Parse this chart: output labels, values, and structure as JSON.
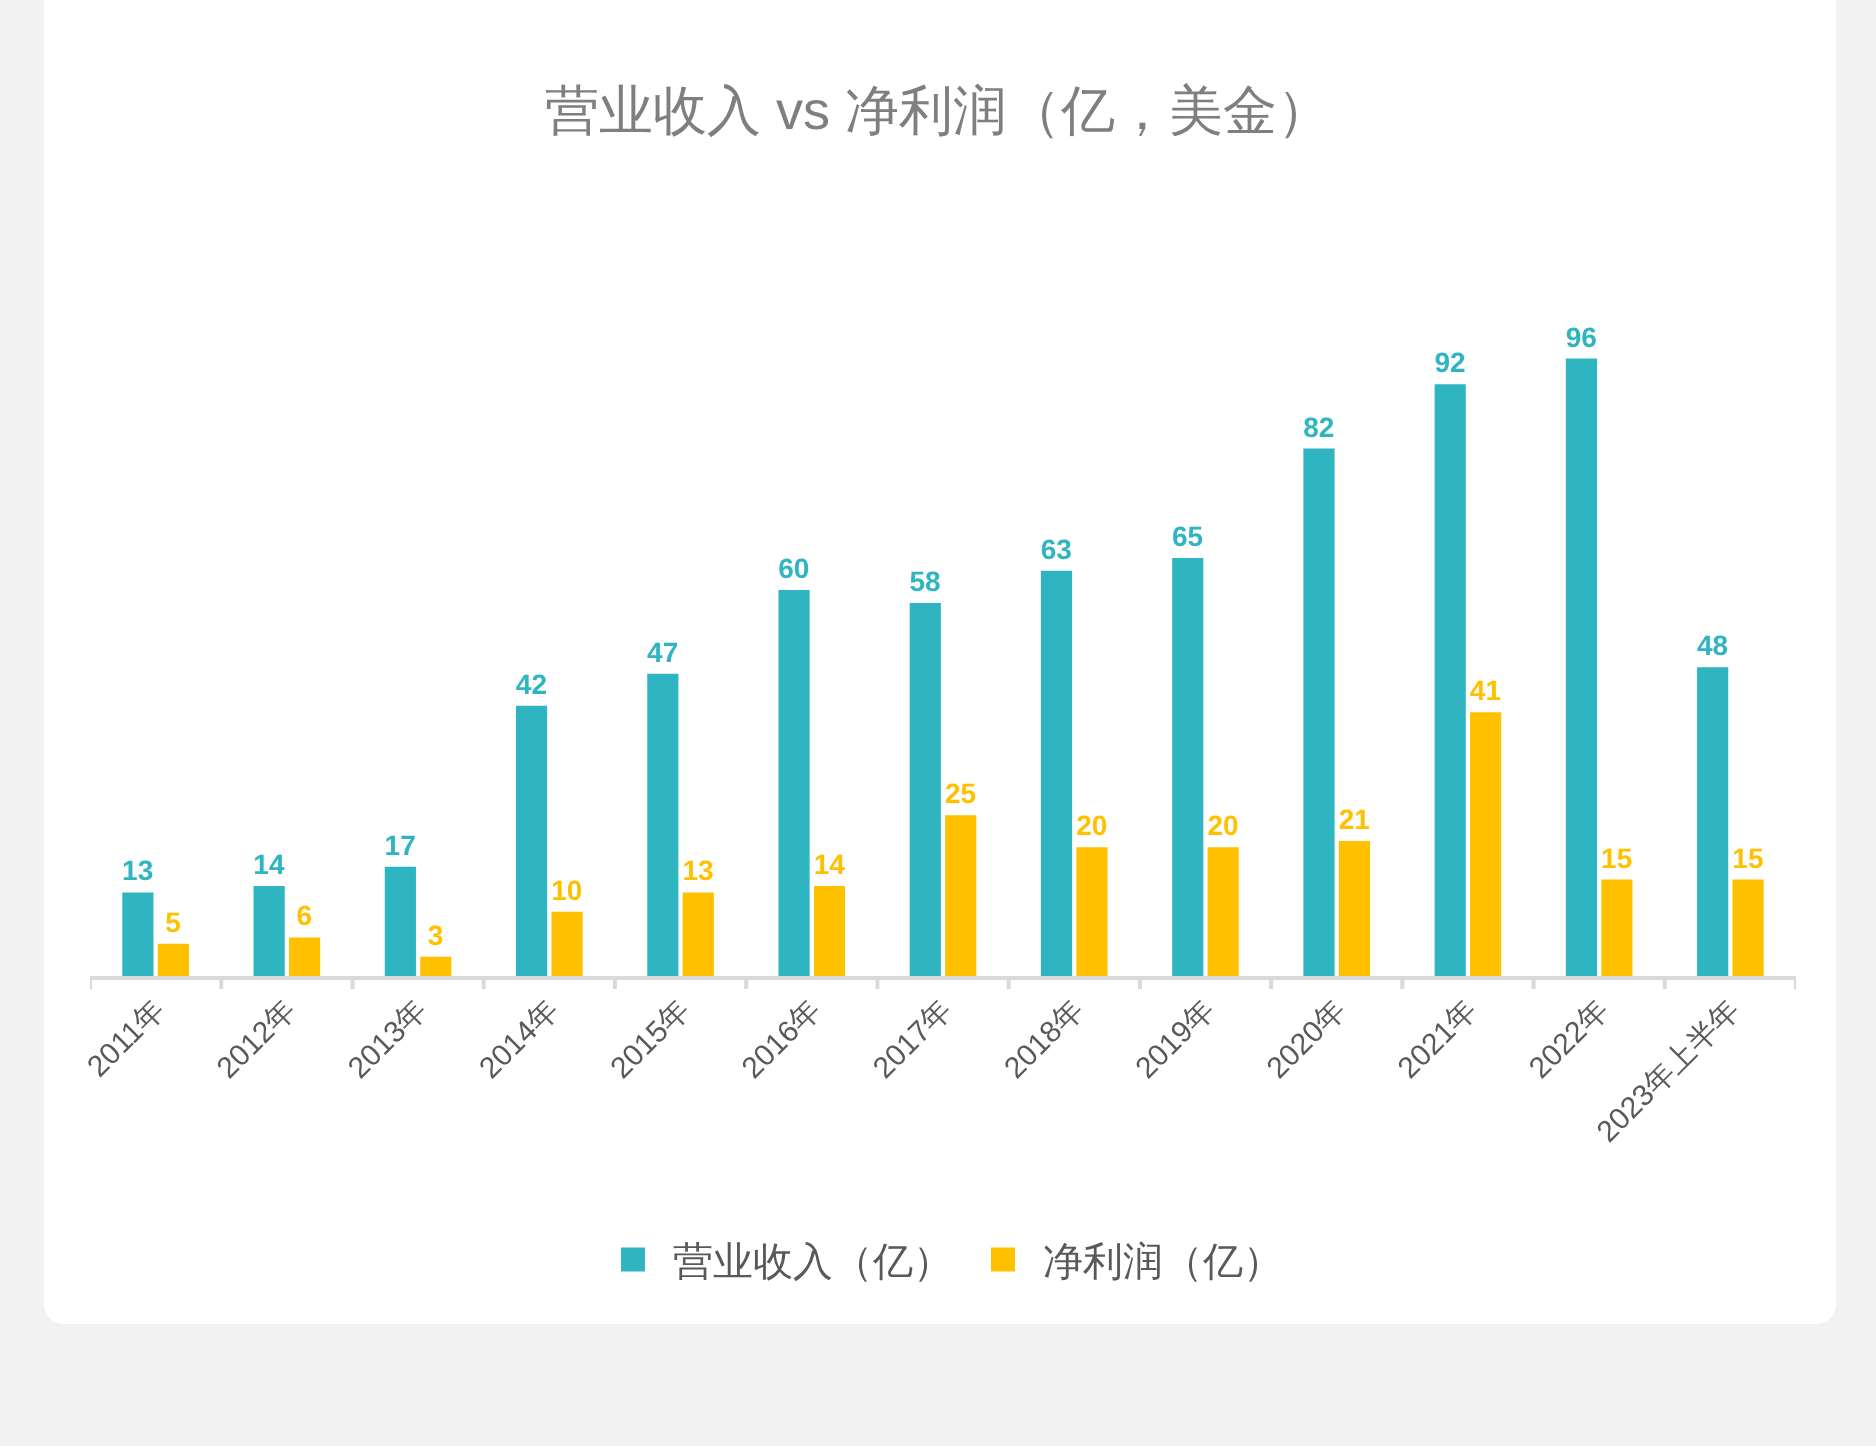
{
  "chart_data": {
    "type": "bar",
    "title": "营业收入 vs 净利润（亿，美金）",
    "categories": [
      "2011年",
      "2012年",
      "2013年",
      "2014年",
      "2015年",
      "2016年",
      "2017年",
      "2018年",
      "2019年",
      "2020年",
      "2021年",
      "2022年",
      "2023年上半年"
    ],
    "series": [
      {
        "name": "营业收入（亿）",
        "color": "#2fb5c1",
        "values": [
          13,
          14,
          17,
          42,
          47,
          60,
          58,
          63,
          65,
          82,
          92,
          96,
          48
        ]
      },
      {
        "name": "净利润（亿）",
        "color": "#ffc000",
        "values": [
          5,
          6,
          3,
          10,
          13,
          14,
          25,
          20,
          20,
          21,
          41,
          15,
          15
        ]
      }
    ],
    "data_labels": true,
    "grid": false,
    "legend": "bottom",
    "tick_labels": "x"
  }
}
